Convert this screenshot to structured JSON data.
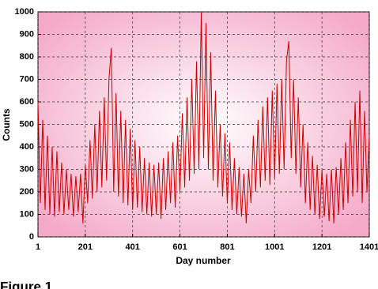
{
  "chart_data": {
    "type": "line",
    "x_label": "Day number",
    "y_label": "Counts",
    "caption": "Figure 1",
    "xlim": [
      1,
      1401
    ],
    "ylim": [
      0,
      1000
    ],
    "xticks": [
      1,
      201,
      401,
      601,
      801,
      1001,
      1201,
      1401
    ],
    "yticks": [
      0,
      100,
      200,
      300,
      400,
      500,
      600,
      700,
      800,
      900,
      1000
    ],
    "grid": true,
    "color": "#cc0000",
    "x": [
      1,
      11,
      21,
      31,
      41,
      51,
      61,
      71,
      81,
      91,
      101,
      111,
      121,
      131,
      141,
      151,
      161,
      171,
      181,
      191,
      201,
      211,
      221,
      231,
      241,
      251,
      261,
      271,
      281,
      291,
      301,
      311,
      321,
      331,
      341,
      351,
      361,
      371,
      381,
      391,
      401,
      411,
      421,
      431,
      441,
      451,
      461,
      471,
      481,
      491,
      501,
      511,
      521,
      531,
      541,
      551,
      561,
      571,
      581,
      591,
      601,
      611,
      621,
      631,
      641,
      651,
      661,
      671,
      681,
      691,
      701,
      711,
      721,
      731,
      741,
      751,
      761,
      771,
      781,
      791,
      801,
      811,
      821,
      831,
      841,
      851,
      861,
      871,
      881,
      891,
      901,
      911,
      921,
      931,
      941,
      951,
      961,
      971,
      981,
      991,
      1001,
      1011,
      1021,
      1031,
      1041,
      1051,
      1061,
      1071,
      1081,
      1091,
      1101,
      1111,
      1121,
      1131,
      1141,
      1151,
      1161,
      1171,
      1181,
      1191,
      1201,
      1211,
      1221,
      1231,
      1241,
      1251,
      1261,
      1271,
      1281,
      1291,
      1301,
      1311,
      1321,
      1331,
      1341,
      1351,
      1361,
      1371,
      1381,
      1391,
      1401
    ],
    "values": [
      600,
      150,
      520,
      120,
      450,
      100,
      400,
      90,
      380,
      110,
      330,
      100,
      300,
      120,
      280,
      90,
      270,
      110,
      280,
      60,
      320,
      150,
      430,
      170,
      500,
      200,
      560,
      220,
      620,
      250,
      700,
      840,
      200,
      640,
      180,
      560,
      150,
      520,
      140,
      480,
      120,
      430,
      130,
      400,
      110,
      350,
      100,
      330,
      90,
      320,
      100,
      330,
      80,
      350,
      120,
      380,
      150,
      420,
      130,
      450,
      200,
      550,
      220,
      620,
      250,
      700,
      280,
      780,
      300,
      1000,
      350,
      950,
      300,
      820,
      250,
      650,
      220,
      500,
      180,
      460,
      150,
      420,
      120,
      350,
      100,
      310,
      90,
      280,
      60,
      300,
      150,
      450,
      200,
      520,
      220,
      580,
      250,
      620,
      230,
      650,
      260,
      680,
      280,
      700,
      300,
      780,
      870,
      350,
      700,
      280,
      620,
      220,
      500,
      150,
      420,
      120,
      360,
      100,
      320,
      80,
      300,
      90,
      280,
      70,
      300,
      60,
      310,
      100,
      350,
      120,
      420,
      150,
      520,
      180,
      600,
      200,
      650,
      150,
      560,
      200,
      450
    ]
  }
}
